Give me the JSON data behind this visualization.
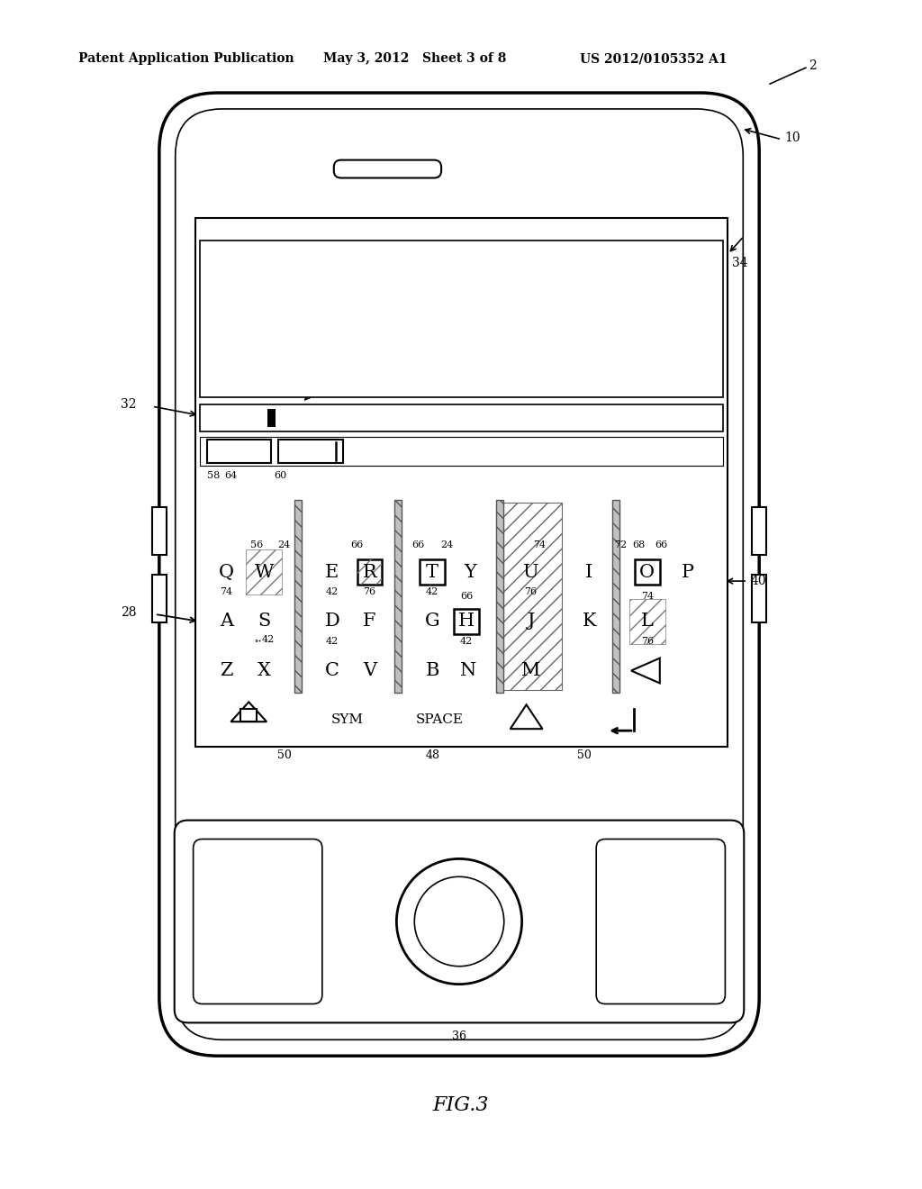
{
  "header_left": "Patent Application Publication",
  "header_mid": "May 3, 2012   Sheet 3 of 8",
  "header_right": "US 2012/0105352 A1",
  "fig_label": "FIG.3",
  "bg_color": "#ffffff",
  "line_color": "#000000"
}
